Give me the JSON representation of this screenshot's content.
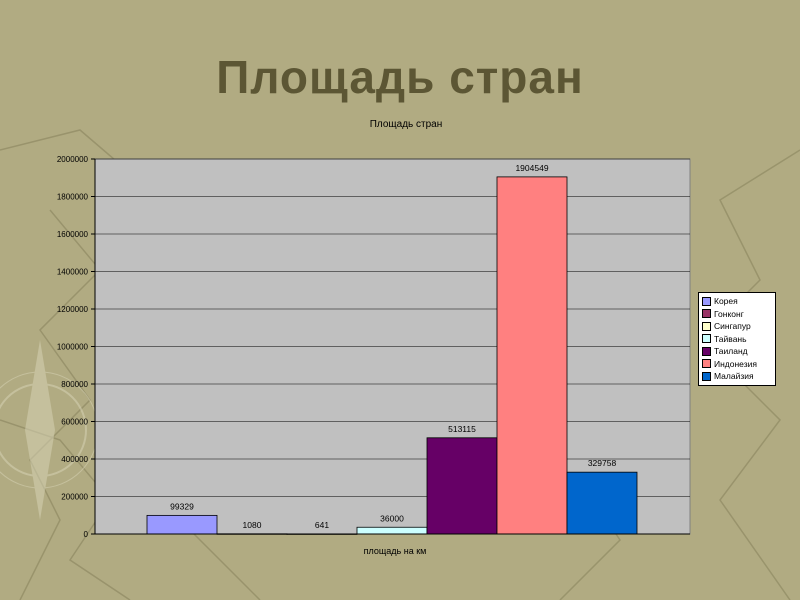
{
  "slide": {
    "title": "Площадь стран"
  },
  "colors": {
    "background": "#b1ab82",
    "title": "#5c5634",
    "plot_area": "#c0c0c0"
  },
  "chart_data": {
    "type": "bar",
    "title": "Площадь стран",
    "xlabel": "площадь на км",
    "ylabel": "",
    "ylim": [
      0,
      2000000
    ],
    "yticks": [
      0,
      200000,
      400000,
      600000,
      800000,
      1000000,
      1200000,
      1400000,
      1600000,
      1800000,
      2000000
    ],
    "grid": true,
    "legend_position": "right",
    "series": [
      {
        "name": "Корея",
        "values": [
          99329
        ],
        "color": "#9999ff"
      },
      {
        "name": "Гонконг",
        "values": [
          1080
        ],
        "color": "#993366"
      },
      {
        "name": "Сингапур",
        "values": [
          641
        ],
        "color": "#ffffcc"
      },
      {
        "name": "Тайвань",
        "values": [
          36000
        ],
        "color": "#ccffff"
      },
      {
        "name": "Таиланд",
        "values": [
          513115
        ],
        "color": "#660066"
      },
      {
        "name": "Индонезия",
        "values": [
          1904549
        ],
        "color": "#ff8080"
      },
      {
        "name": "Малайзия",
        "values": [
          329758
        ],
        "color": "#0066cc"
      }
    ]
  }
}
